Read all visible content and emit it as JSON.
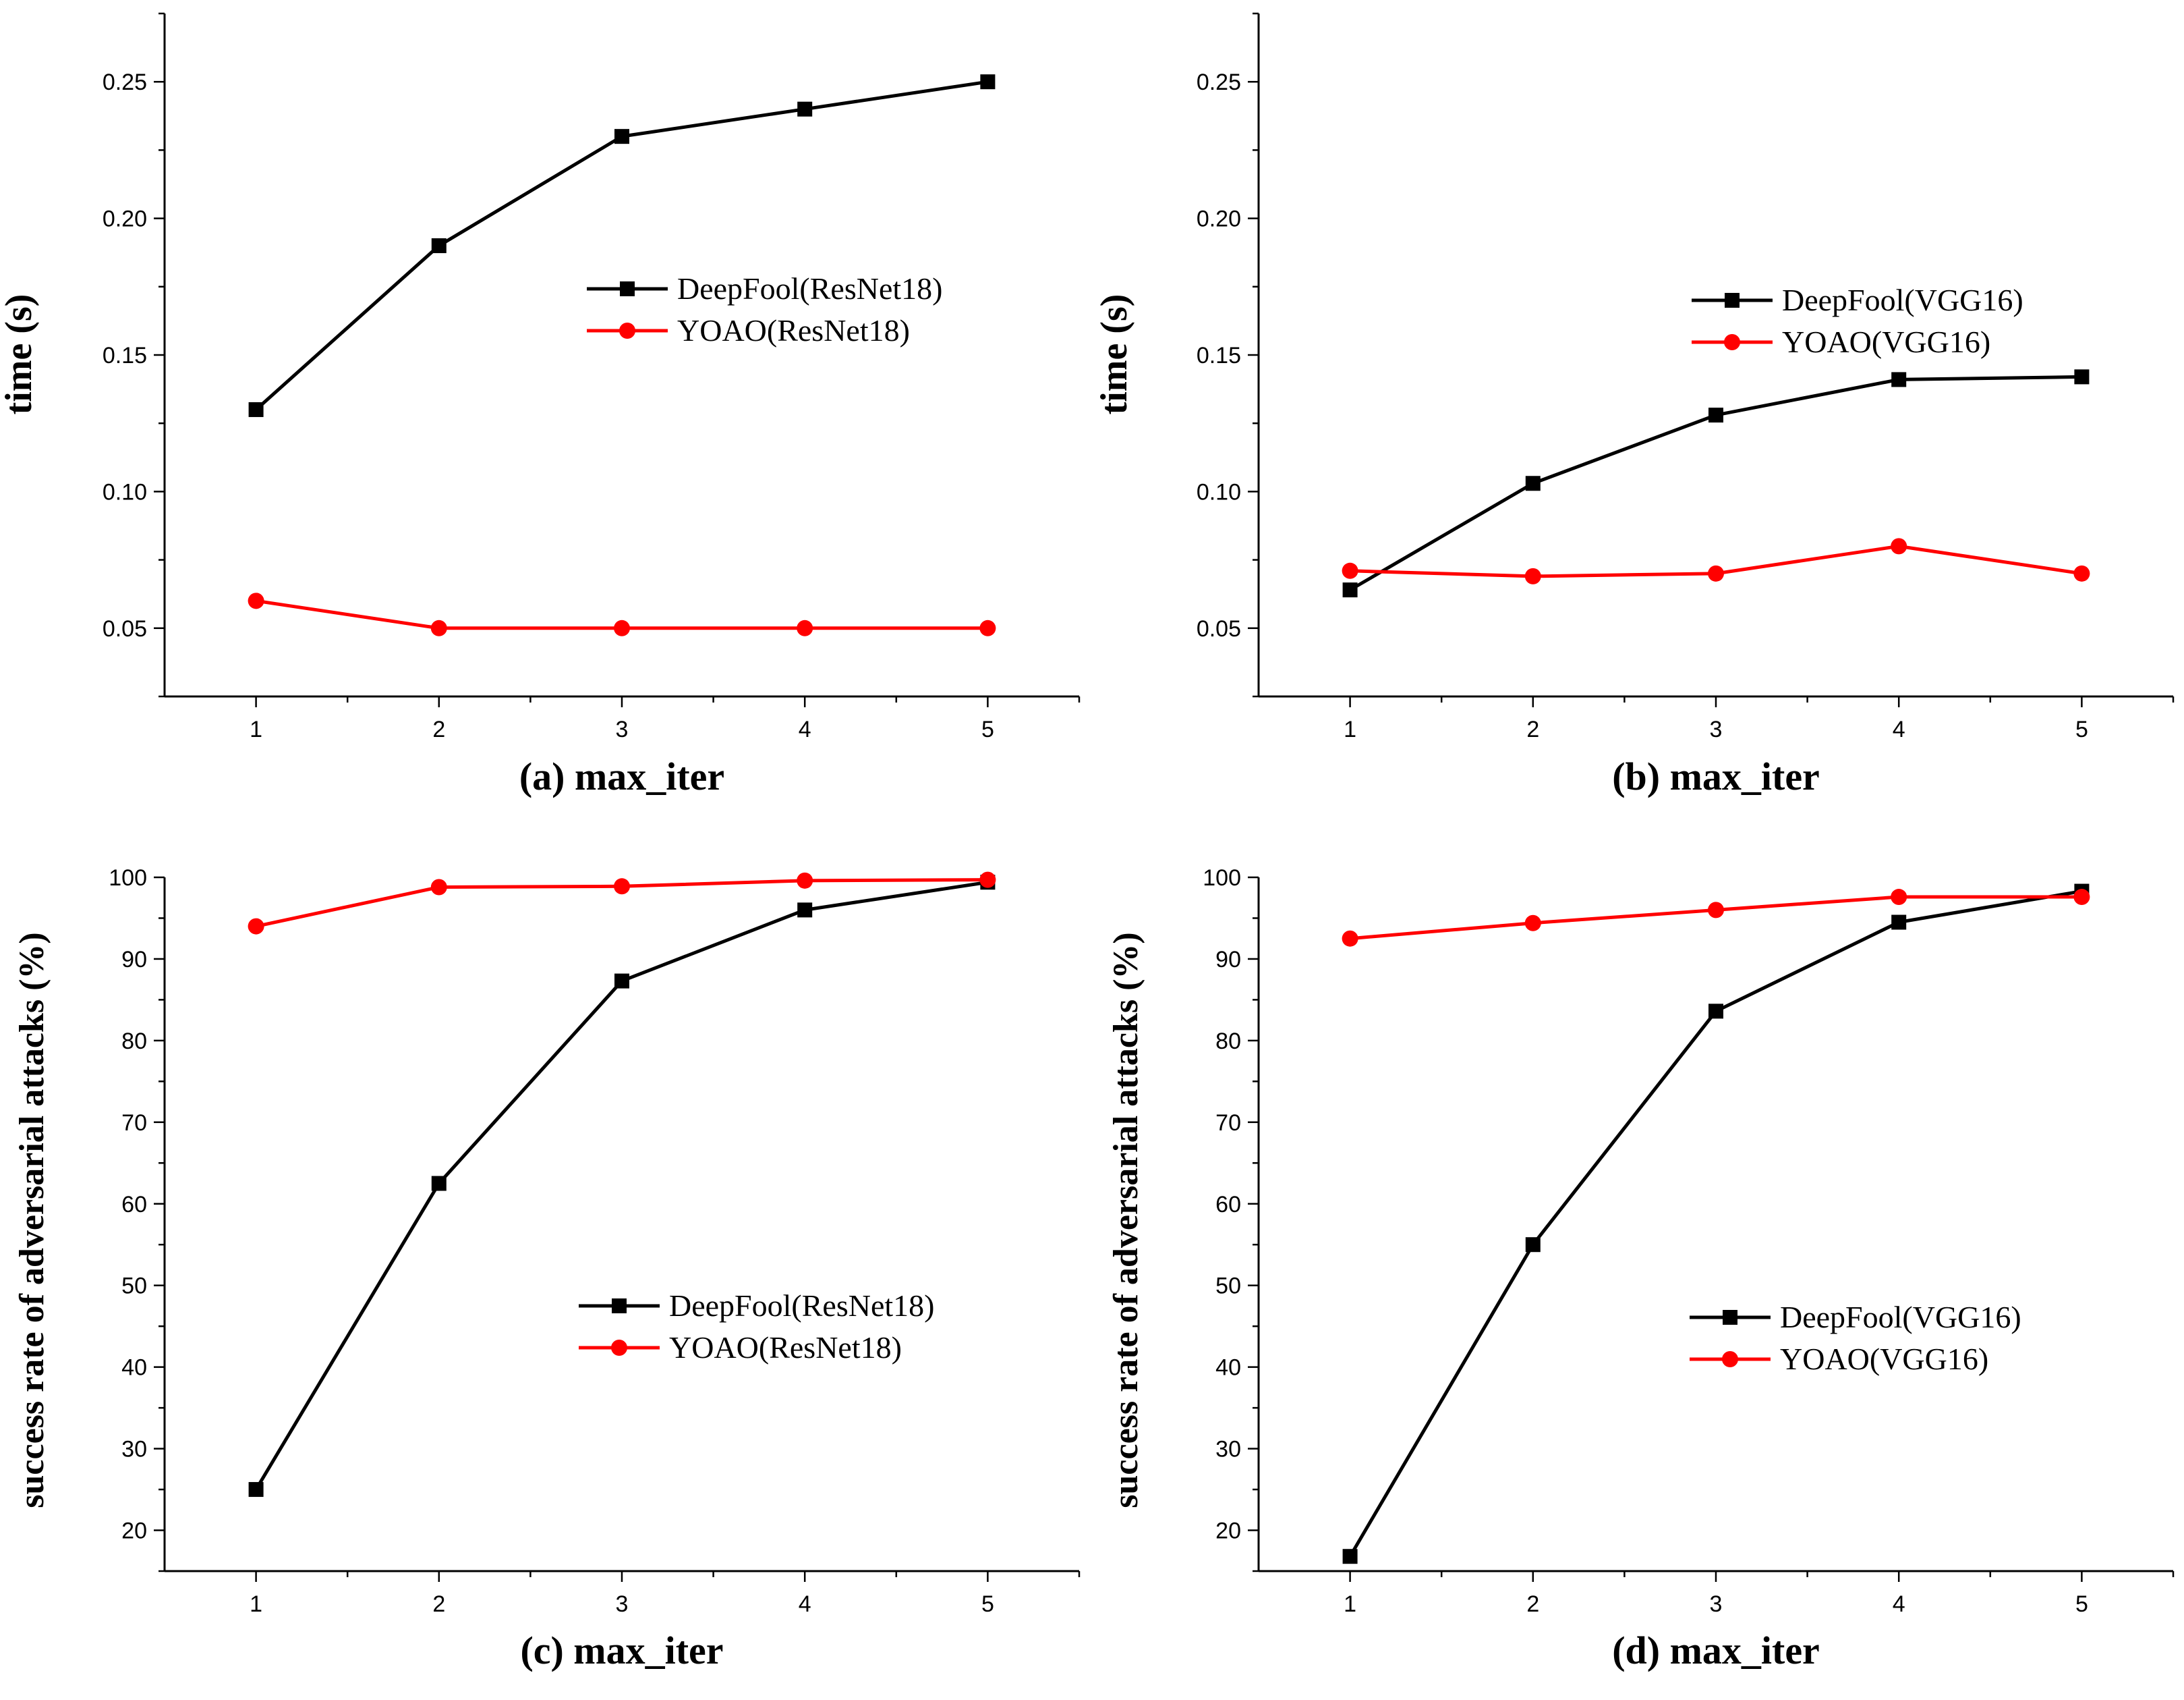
{
  "chart_data": [
    {
      "id": "a",
      "type": "line",
      "title": "",
      "xlabel": "(a) max_iter",
      "ylabel": "time (s)",
      "x": [
        1,
        2,
        3,
        4,
        5
      ],
      "xlim": [
        0.5,
        5.5
      ],
      "ylim": [
        0.025,
        0.275
      ],
      "yticks": [
        0.05,
        0.1,
        0.15,
        0.2,
        0.25
      ],
      "ytick_labels": [
        "0.05",
        "0.10",
        "0.15",
        "0.20",
        "0.25"
      ],
      "xtick_labels": [
        "1",
        "2",
        "3",
        "4",
        "5"
      ],
      "legend_position": "center-right",
      "series": [
        {
          "name": "DeepFool(ResNet18)",
          "color": "#000000",
          "marker": "square",
          "values": [
            0.13,
            0.19,
            0.23,
            0.24,
            0.25
          ]
        },
        {
          "name": "YOAO(ResNet18)",
          "color": "#ff0000",
          "marker": "circle",
          "values": [
            0.06,
            0.05,
            0.05,
            0.05,
            0.05
          ]
        }
      ]
    },
    {
      "id": "b",
      "type": "line",
      "title": "",
      "xlabel": "(b) max_iter",
      "ylabel": "time (s)",
      "x": [
        1,
        2,
        3,
        4,
        5
      ],
      "xlim": [
        0.5,
        5.5
      ],
      "ylim": [
        0.025,
        0.275
      ],
      "yticks": [
        0.05,
        0.1,
        0.15,
        0.2,
        0.25
      ],
      "ytick_labels": [
        "0.05",
        "0.10",
        "0.15",
        "0.20",
        "0.25"
      ],
      "xtick_labels": [
        "1",
        "2",
        "3",
        "4",
        "5"
      ],
      "legend_position": "center-right",
      "series": [
        {
          "name": "DeepFool(VGG16)",
          "color": "#000000",
          "marker": "square",
          "values": [
            0.064,
            0.103,
            0.128,
            0.141,
            0.142
          ]
        },
        {
          "name": "YOAO(VGG16)",
          "color": "#ff0000",
          "marker": "circle",
          "values": [
            0.071,
            0.069,
            0.07,
            0.08,
            0.07
          ]
        }
      ]
    },
    {
      "id": "c",
      "type": "line",
      "title": "",
      "xlabel": "(c) max_iter",
      "ylabel": "success rate of adversarial attacks (%)",
      "x": [
        1,
        2,
        3,
        4,
        5
      ],
      "xlim": [
        0.5,
        5.5
      ],
      "ylim": [
        15,
        100
      ],
      "yticks": [
        20,
        30,
        40,
        50,
        60,
        70,
        80,
        90,
        100
      ],
      "ytick_labels": [
        "20",
        "30",
        "40",
        "50",
        "60",
        "70",
        "80",
        "90",
        "100"
      ],
      "xtick_labels": [
        "1",
        "2",
        "3",
        "4",
        "5"
      ],
      "legend_position": "lower-right",
      "series": [
        {
          "name": "DeepFool(ResNet18)",
          "color": "#000000",
          "marker": "square",
          "values": [
            25,
            62.5,
            87.3,
            96,
            99.4
          ]
        },
        {
          "name": "YOAO(ResNet18)",
          "color": "#ff0000",
          "marker": "circle",
          "values": [
            94,
            98.8,
            98.9,
            99.6,
            99.7
          ]
        }
      ]
    },
    {
      "id": "d",
      "type": "line",
      "title": "",
      "xlabel": "(d) max_iter",
      "ylabel": "success rate of adversarial attacks (%)",
      "x": [
        1,
        2,
        3,
        4,
        5
      ],
      "xlim": [
        0.5,
        5.5
      ],
      "ylim": [
        15,
        100
      ],
      "yticks": [
        20,
        30,
        40,
        50,
        60,
        70,
        80,
        90,
        100
      ],
      "ytick_labels": [
        "20",
        "30",
        "40",
        "50",
        "60",
        "70",
        "80",
        "90",
        "100"
      ],
      "xtick_labels": [
        "1",
        "2",
        "3",
        "4",
        "5"
      ],
      "legend_position": "lower-right",
      "series": [
        {
          "name": "DeepFool(VGG16)",
          "color": "#000000",
          "marker": "square",
          "values": [
            16.8,
            55,
            83.6,
            94.5,
            98.3
          ]
        },
        {
          "name": "YOAO(VGG16)",
          "color": "#ff0000",
          "marker": "circle",
          "values": [
            92.5,
            94.4,
            96,
            97.6,
            97.6
          ]
        }
      ]
    }
  ]
}
